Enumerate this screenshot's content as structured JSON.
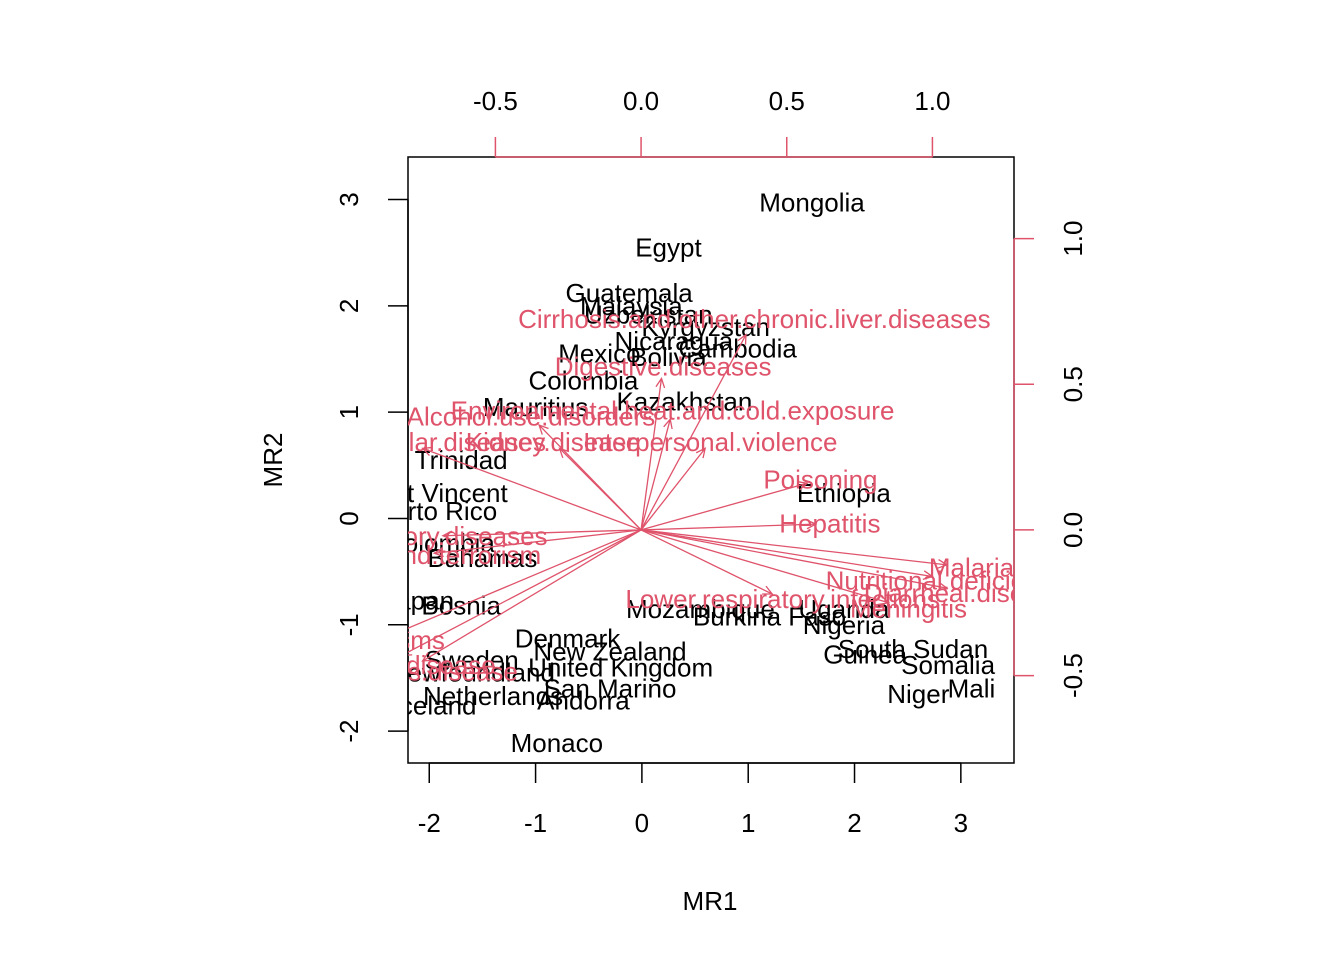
{
  "chart_data": {
    "type": "scatter",
    "subtype": "biplot",
    "title": "",
    "xlabel": "MR1",
    "ylabel": "MR2",
    "xlim": [
      -2.2,
      3.5
    ],
    "ylim": [
      -2.3,
      3.4
    ],
    "xticks": [
      -2,
      -1,
      0,
      1,
      2,
      3
    ],
    "yticks": [
      -2,
      -1,
      0,
      1,
      2,
      3
    ],
    "top_xlim": [
      -0.8,
      1.28
    ],
    "top_xticks": [
      -0.5,
      0.0,
      0.5,
      1.0
    ],
    "right_ylim": [
      -0.8,
      1.28
    ],
    "right_yticks": [
      -0.5,
      0.0,
      0.5,
      1.0
    ],
    "colors": {
      "observations": "#000000",
      "loadings": "#DF536B"
    },
    "observations": [
      {
        "label": "Mongolia",
        "x": 1.6,
        "y": 2.97
      },
      {
        "label": "Egypt",
        "x": 0.25,
        "y": 2.55
      },
      {
        "label": "Guatemala",
        "x": -0.12,
        "y": 2.12
      },
      {
        "label": "Malaysia",
        "x": -0.1,
        "y": 2.0
      },
      {
        "label": "Uzbekistan",
        "x": 0.06,
        "y": 1.92
      },
      {
        "label": "Kyrgyzstan",
        "x": 0.6,
        "y": 1.8
      },
      {
        "label": "Nicaragua",
        "x": 0.3,
        "y": 1.67
      },
      {
        "label": "Cambodia",
        "x": 0.9,
        "y": 1.6
      },
      {
        "label": "Mexico",
        "x": -0.4,
        "y": 1.55
      },
      {
        "label": "Bolivia",
        "x": 0.25,
        "y": 1.52
      },
      {
        "label": "Colombia",
        "x": -0.55,
        "y": 1.3
      },
      {
        "label": "Kazakhstan",
        "x": 0.4,
        "y": 1.1
      },
      {
        "label": "Mauritius",
        "x": -1.0,
        "y": 1.05
      },
      {
        "label": "Trinidad",
        "x": -1.7,
        "y": 0.55
      },
      {
        "label": "Saint Vincent",
        "x": -1.98,
        "y": 0.24
      },
      {
        "label": "Puerto Rico",
        "x": -2.0,
        "y": 0.07
      },
      {
        "label": "Colombia",
        "x": -1.9,
        "y": -0.23
      },
      {
        "label": "Bahamas",
        "x": -1.5,
        "y": -0.37
      },
      {
        "label": "Japan",
        "x": -2.1,
        "y": -0.77
      },
      {
        "label": "Bosnia",
        "x": -1.7,
        "y": -0.82
      },
      {
        "label": "Denmark",
        "x": -0.7,
        "y": -1.13
      },
      {
        "label": "New Zealand",
        "x": -0.3,
        "y": -1.25
      },
      {
        "label": "United Kingdom",
        "x": -0.2,
        "y": -1.4
      },
      {
        "label": "Sweden",
        "x": -1.6,
        "y": -1.33
      },
      {
        "label": "Newfoundland",
        "x": -1.6,
        "y": -1.45
      },
      {
        "label": "Netherlands",
        "x": -1.4,
        "y": -1.67
      },
      {
        "label": "San Marino",
        "x": -0.3,
        "y": -1.6
      },
      {
        "label": "Andorra",
        "x": -0.55,
        "y": -1.71
      },
      {
        "label": "Iceland",
        "x": -1.95,
        "y": -1.76
      },
      {
        "label": "Monaco",
        "x": -0.8,
        "y": -2.11
      },
      {
        "label": "Ethiopia",
        "x": 1.9,
        "y": 0.24
      },
      {
        "label": "Mozambique",
        "x": 0.55,
        "y": -0.85
      },
      {
        "label": "Burkina Faso",
        "x": 1.2,
        "y": -0.92
      },
      {
        "label": "Uganda",
        "x": 1.9,
        "y": -0.85
      },
      {
        "label": "Nigeria",
        "x": 1.9,
        "y": -1.0
      },
      {
        "label": "South Sudan",
        "x": 2.55,
        "y": -1.23
      },
      {
        "label": "Guinea",
        "x": 2.1,
        "y": -1.28
      },
      {
        "label": "Somalia",
        "x": 2.88,
        "y": -1.38
      },
      {
        "label": "Mali",
        "x": 3.1,
        "y": -1.6
      },
      {
        "label": "Niger",
        "x": 2.6,
        "y": -1.65
      }
    ],
    "loadings": [
      {
        "label": "Cirrhosis.and.other.chronic.liver.diseases",
        "x": 0.36,
        "y": 0.67
      },
      {
        "label": "Digestive.diseases",
        "x": 0.07,
        "y": 0.52
      },
      {
        "label": "Environmental.heat.and.cold.exposure",
        "x": 0.1,
        "y": 0.38
      },
      {
        "label": "Alcohol.use.disorders",
        "x": -0.35,
        "y": 0.36
      },
      {
        "label": "Cardiovascular.diseases",
        "x": -0.75,
        "y": 0.28
      },
      {
        "label": "Kidney.disease",
        "x": -0.28,
        "y": 0.28
      },
      {
        "label": "Interpersonal.violence",
        "x": 0.22,
        "y": 0.28
      },
      {
        "label": "Poisoning",
        "x": 0.57,
        "y": 0.16
      },
      {
        "label": "Hepatitis",
        "x": 0.6,
        "y": 0.02
      },
      {
        "label": "Respiratory.diseases",
        "x": -0.68,
        "y": -0.02
      },
      {
        "label": "Conflict.and.terrorism",
        "x": -0.71,
        "y": -0.08
      },
      {
        "label": "Malaria",
        "x": 1.05,
        "y": -0.12
      },
      {
        "label": "Nutritional.deficiencies",
        "x": 1.0,
        "y": -0.16
      },
      {
        "label": "Diarrheal.diseases",
        "x": 1.05,
        "y": -0.2
      },
      {
        "label": "Lower.respiratory.infections",
        "x": 0.45,
        "y": -0.22
      },
      {
        "label": "Meningitis",
        "x": 0.85,
        "y": -0.25
      },
      {
        "label": "Neoplasms",
        "x": -0.83,
        "y": -0.35
      },
      {
        "label": "Alzheimers.disease",
        "x": -0.82,
        "y": -0.43
      },
      {
        "label": "Parkinsons.disease",
        "x": -0.75,
        "y": -0.45
      }
    ]
  }
}
